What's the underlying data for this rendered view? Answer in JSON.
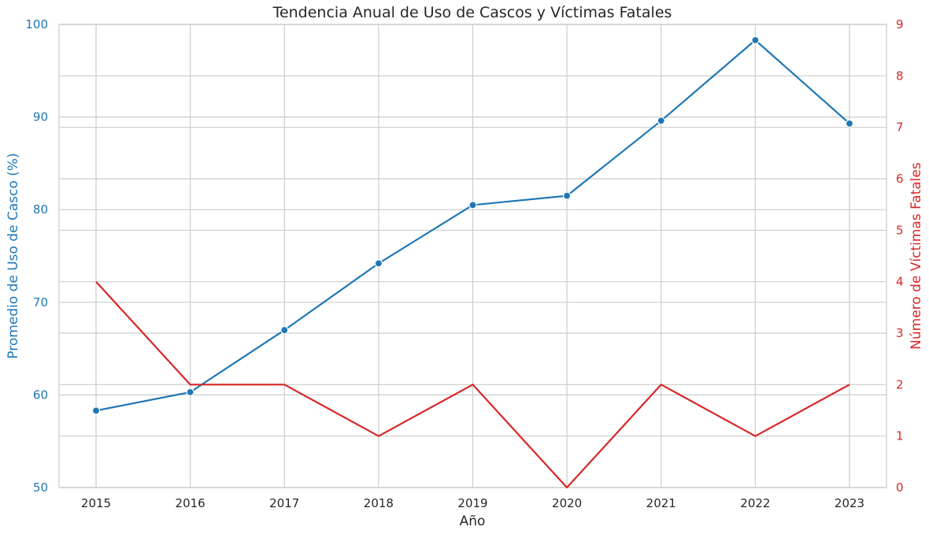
{
  "chart_data": {
    "type": "line",
    "title": "Tendencia Anual de Uso de Cascos y Víctimas Fatales",
    "xlabel": "Año",
    "x": [
      "2015",
      "2016",
      "2017",
      "2018",
      "2019",
      "2020",
      "2021",
      "2022",
      "2023"
    ],
    "y_left": {
      "label": "Promedio de Uso de Casco (%)",
      "lim": [
        50,
        100
      ],
      "ticks": [
        "50",
        "60",
        "70",
        "80",
        "90",
        "100"
      ],
      "color": "#1f77b4"
    },
    "y_right": {
      "label": "Número de Víctimas Fatales",
      "lim": [
        0,
        9
      ],
      "ticks": [
        "0",
        "1",
        "2",
        "3",
        "4",
        "5",
        "6",
        "7",
        "8",
        "9"
      ],
      "color": "#d62728"
    },
    "series": [
      {
        "axis": "left",
        "color": "#1f77b4",
        "marker": "circle",
        "values": [
          58.3,
          60.3,
          67.0,
          74.2,
          80.5,
          81.5,
          89.6,
          98.3,
          89.3
        ]
      },
      {
        "axis": "right",
        "color": "#d62728",
        "marker": "none",
        "values": [
          4,
          2,
          2,
          1,
          2,
          0,
          2,
          1,
          2
        ]
      }
    ],
    "grid": true
  }
}
